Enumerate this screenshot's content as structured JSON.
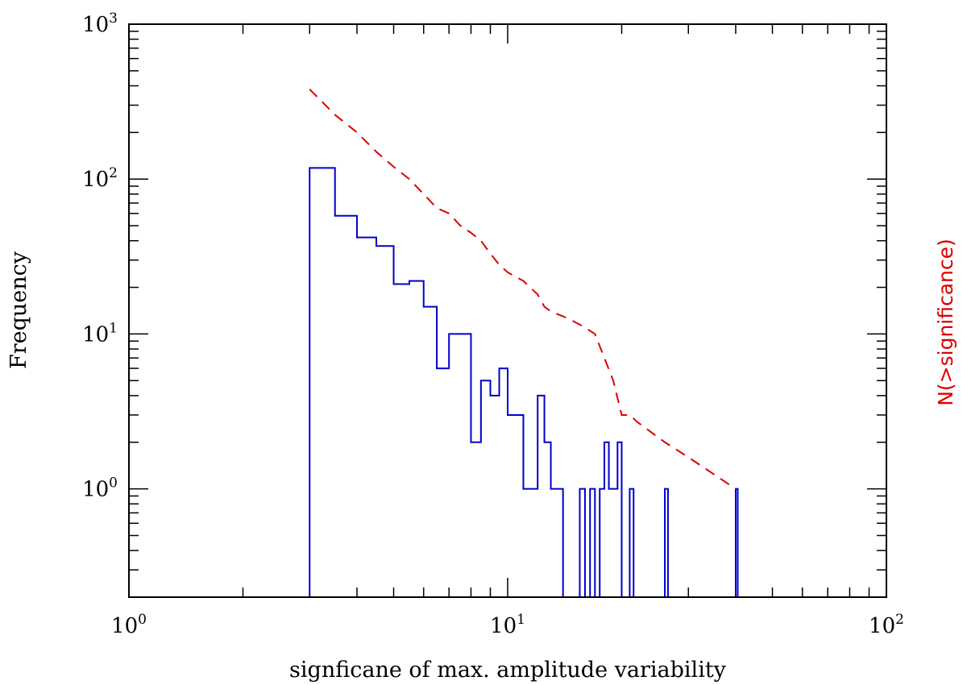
{
  "chart_data": {
    "type": "line",
    "title": "",
    "xlabel": "signficane of max. amplitude variability",
    "ylabel": "Frequency",
    "y2label": "N(>significance)",
    "xscale": "log",
    "yscale": "log",
    "xlim": [
      1,
      100
    ],
    "ylim": [
      0.2,
      1000
    ],
    "x_ticks": [
      {
        "base": "10",
        "exp": "0",
        "value": 1
      },
      {
        "base": "10",
        "exp": "1",
        "value": 10
      },
      {
        "base": "10",
        "exp": "2",
        "value": 100
      }
    ],
    "y_ticks": [
      {
        "base": "10",
        "exp": "0",
        "value": 1
      },
      {
        "base": "10",
        "exp": "1",
        "value": 10
      },
      {
        "base": "10",
        "exp": "2",
        "value": 100
      },
      {
        "base": "10",
        "exp": "3",
        "value": 1000
      }
    ],
    "grid": false,
    "series": [
      {
        "name": "Frequency",
        "style": "step-histogram",
        "color": "#0000cc",
        "bins": [
          {
            "x0": 3.0,
            "x1": 3.5,
            "y": 118
          },
          {
            "x0": 3.5,
            "x1": 4.0,
            "y": 58
          },
          {
            "x0": 4.0,
            "x1": 4.5,
            "y": 42
          },
          {
            "x0": 4.5,
            "x1": 5.0,
            "y": 37
          },
          {
            "x0": 5.0,
            "x1": 5.5,
            "y": 21
          },
          {
            "x0": 5.5,
            "x1": 6.0,
            "y": 22
          },
          {
            "x0": 6.0,
            "x1": 6.5,
            "y": 15
          },
          {
            "x0": 6.5,
            "x1": 7.0,
            "y": 6
          },
          {
            "x0": 7.0,
            "x1": 8.0,
            "y": 10
          },
          {
            "x0": 8.0,
            "x1": 8.5,
            "y": 2
          },
          {
            "x0": 8.5,
            "x1": 9.0,
            "y": 5
          },
          {
            "x0": 9.0,
            "x1": 9.5,
            "y": 4
          },
          {
            "x0": 9.5,
            "x1": 10.0,
            "y": 6
          },
          {
            "x0": 10.0,
            "x1": 11.0,
            "y": 3
          },
          {
            "x0": 11.0,
            "x1": 12.0,
            "y": 1
          },
          {
            "x0": 12.0,
            "x1": 12.5,
            "y": 4
          },
          {
            "x0": 12.5,
            "x1": 13.0,
            "y": 2
          },
          {
            "x0": 13.0,
            "x1": 14.0,
            "y": 1
          },
          {
            "x0": 14.0,
            "x1": 15.5,
            "y": 0
          },
          {
            "x0": 15.5,
            "x1": 16.0,
            "y": 1
          },
          {
            "x0": 16.0,
            "x1": 16.5,
            "y": 0
          },
          {
            "x0": 16.5,
            "x1": 17.0,
            "y": 1
          },
          {
            "x0": 17.0,
            "x1": 17.5,
            "y": 0
          },
          {
            "x0": 17.5,
            "x1": 18.0,
            "y": 1
          },
          {
            "x0": 18.0,
            "x1": 18.5,
            "y": 2
          },
          {
            "x0": 18.5,
            "x1": 19.5,
            "y": 1
          },
          {
            "x0": 19.5,
            "x1": 20.0,
            "y": 2
          },
          {
            "x0": 20.0,
            "x1": 21.0,
            "y": 0
          },
          {
            "x0": 21.0,
            "x1": 21.5,
            "y": 1
          },
          {
            "x0": 21.5,
            "x1": 26.0,
            "y": 0
          },
          {
            "x0": 26.0,
            "x1": 26.5,
            "y": 1
          },
          {
            "x0": 26.5,
            "x1": 40.0,
            "y": 0
          },
          {
            "x0": 40.0,
            "x1": 40.5,
            "y": 1
          }
        ]
      },
      {
        "name": "N(>significance)",
        "style": "dashed-line",
        "color": "#dd0000",
        "x": [
          3.0,
          3.5,
          4.0,
          4.5,
          5.0,
          5.5,
          6.0,
          6.5,
          7.0,
          7.5,
          8.0,
          8.5,
          9.0,
          9.5,
          10.0,
          11.0,
          12.0,
          12.5,
          13.0,
          14.0,
          15.0,
          16.0,
          17.0,
          18.0,
          19.0,
          20.0,
          21.0,
          22.0,
          26.0,
          30.0,
          40.0
        ],
        "y": [
          380,
          260,
          200,
          150,
          120,
          100,
          80,
          65,
          60,
          50,
          45,
          40,
          33,
          28,
          25,
          22,
          18,
          15,
          14,
          13,
          12,
          11,
          10,
          7,
          5,
          3,
          3,
          2.7,
          2,
          1.6,
          1
        ]
      }
    ]
  }
}
